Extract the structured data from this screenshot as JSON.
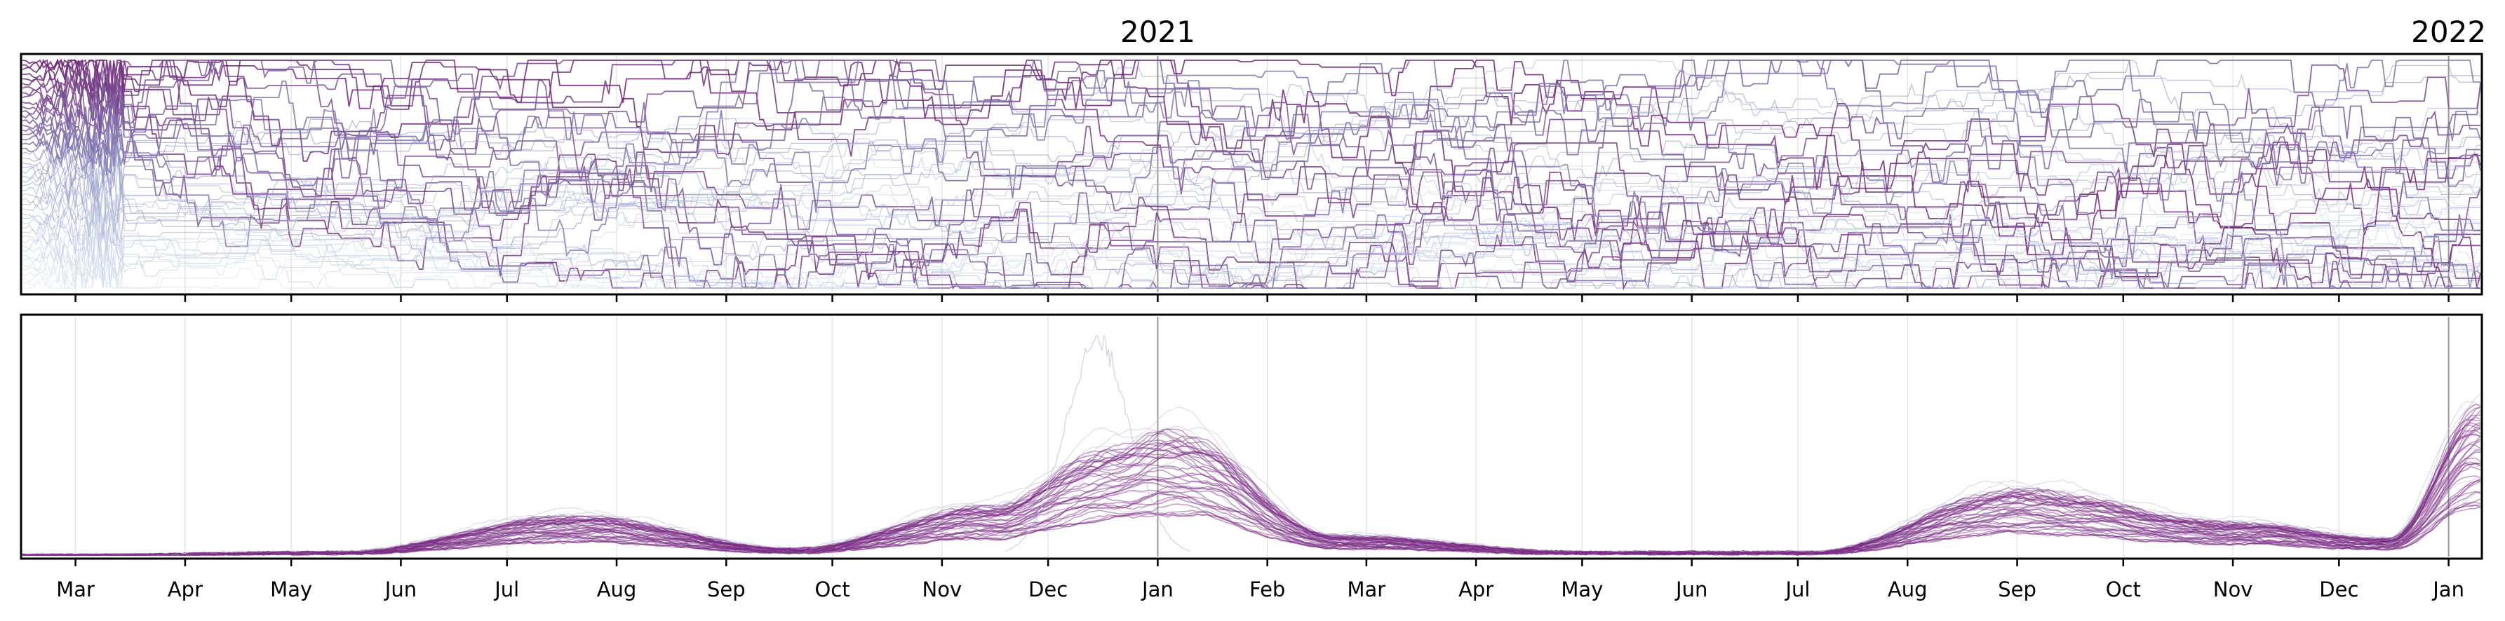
{
  "chart_data": [
    {
      "type": "line",
      "panel": "rank-over-time",
      "title": "",
      "xlabel": "",
      "ylabel": "",
      "x_range": [
        "2020-02-15",
        "2022-01-10"
      ],
      "y_ticks": "none",
      "year_labels": [
        {
          "label": "2021",
          "date": "2021-01-01"
        },
        {
          "label": "2022",
          "date": "2022-01-01"
        }
      ],
      "month_ticks": [
        {
          "label": "Mar",
          "date": "2020-03-01"
        },
        {
          "label": "Apr",
          "date": "2020-04-01"
        },
        {
          "label": "May",
          "date": "2020-05-01"
        },
        {
          "label": "Jun",
          "date": "2020-06-01"
        },
        {
          "label": "Jul",
          "date": "2020-07-01"
        },
        {
          "label": "Aug",
          "date": "2020-08-01"
        },
        {
          "label": "Sep",
          "date": "2020-09-01"
        },
        {
          "label": "Oct",
          "date": "2020-10-01"
        },
        {
          "label": "Nov",
          "date": "2020-11-01"
        },
        {
          "label": "Dec",
          "date": "2020-12-01"
        },
        {
          "label": "Jan",
          "date": "2021-01-01"
        },
        {
          "label": "Feb",
          "date": "2021-02-01"
        },
        {
          "label": "Mar",
          "date": "2021-03-01"
        },
        {
          "label": "Apr",
          "date": "2021-04-01"
        },
        {
          "label": "May",
          "date": "2021-05-01"
        },
        {
          "label": "Jun",
          "date": "2021-06-01"
        },
        {
          "label": "Jul",
          "date": "2021-07-01"
        },
        {
          "label": "Aug",
          "date": "2021-08-01"
        },
        {
          "label": "Sep",
          "date": "2021-09-01"
        },
        {
          "label": "Oct",
          "date": "2021-10-01"
        },
        {
          "label": "Nov",
          "date": "2021-11-01"
        },
        {
          "label": "Dec",
          "date": "2021-12-01"
        },
        {
          "label": "Jan",
          "date": "2022-01-01"
        }
      ],
      "series_count": 50,
      "rank_range": [
        1,
        50
      ],
      "colors": {
        "high": "#6e1f73",
        "mid": "#8c96c6",
        "low": "#dbe8f2"
      }
    },
    {
      "type": "line",
      "panel": "level-over-time",
      "title": "",
      "xlabel": "",
      "ylabel": "",
      "x_range": [
        "2020-02-15",
        "2022-01-10"
      ],
      "y_ticks": "none",
      "series_count": 50,
      "ylim": [
        0,
        1.0
      ],
      "envelope_points": [
        {
          "date": "2020-03-01",
          "value": 0.0
        },
        {
          "date": "2020-05-15",
          "value": 0.01
        },
        {
          "date": "2020-07-20",
          "value": 0.12
        },
        {
          "date": "2020-09-20",
          "value": 0.02
        },
        {
          "date": "2020-11-15",
          "value": 0.15
        },
        {
          "date": "2020-12-20",
          "value": 0.33
        },
        {
          "date": "2021-01-05",
          "value": 0.38
        },
        {
          "date": "2021-02-20",
          "value": 0.06
        },
        {
          "date": "2021-05-01",
          "value": 0.01
        },
        {
          "date": "2021-07-05",
          "value": 0.01
        },
        {
          "date": "2021-09-01",
          "value": 0.2
        },
        {
          "date": "2021-11-01",
          "value": 0.1
        },
        {
          "date": "2021-12-15",
          "value": 0.05
        },
        {
          "date": "2022-01-10",
          "value": 0.45
        }
      ],
      "outlier_peak": {
        "date": "2020-12-15",
        "value": 0.95
      },
      "colors": {
        "line": "#7b2a82",
        "faint": "#c9c3dd"
      }
    }
  ]
}
